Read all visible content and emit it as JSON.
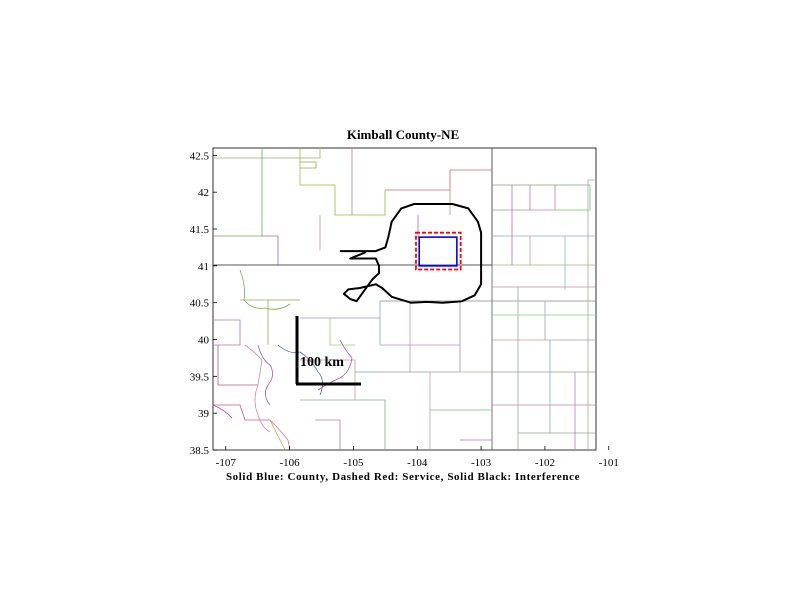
{
  "chart_data": {
    "type": "map",
    "title": "Kimball County-NE",
    "xlabel": "Solid Blue: County, Dashed Red: Service, Solid Black: Interference",
    "xlim": [
      -107.2,
      -101.2
    ],
    "ylim": [
      38.5,
      42.6
    ],
    "xticks": [
      -107,
      -106,
      -105,
      -104,
      -103,
      -102,
      -101
    ],
    "yticks": [
      38.5,
      39,
      39.5,
      40,
      40.5,
      41,
      41.5,
      42,
      42.5
    ],
    "scale_bar_label": "100 km",
    "county": {
      "color": "#0000ff",
      "lon_range": [
        -103.97,
        -103.38
      ],
      "lat_range": [
        41.0,
        41.39
      ]
    },
    "service": {
      "color": "#ff0000",
      "lon_range": [
        -104.02,
        -103.32
      ],
      "lat_range": [
        40.95,
        41.45
      ]
    },
    "interference": {
      "color": "#000000",
      "outline": [
        [
          -104.05,
          41.84
        ],
        [
          -103.45,
          41.84
        ],
        [
          -103.2,
          41.78
        ],
        [
          -103.05,
          41.6
        ],
        [
          -103.0,
          41.45
        ],
        [
          -103.0,
          40.75
        ],
        [
          -103.1,
          40.6
        ],
        [
          -103.3,
          40.52
        ],
        [
          -103.6,
          40.5
        ],
        [
          -103.85,
          40.51
        ],
        [
          -104.1,
          40.5
        ],
        [
          -104.4,
          40.58
        ],
        [
          -104.55,
          40.7
        ],
        [
          -104.65,
          40.75
        ],
        [
          -104.9,
          40.7
        ],
        [
          -105.08,
          40.68
        ],
        [
          -105.15,
          40.62
        ],
        [
          -105.05,
          40.55
        ],
        [
          -104.95,
          40.52
        ],
        [
          -104.7,
          40.82
        ],
        [
          -104.6,
          40.9
        ],
        [
          -104.6,
          41.0
        ],
        [
          -104.65,
          41.1
        ],
        [
          -104.9,
          41.1
        ],
        [
          -105.05,
          41.1
        ],
        [
          -104.82,
          41.18
        ],
        [
          -104.8,
          41.2
        ],
        [
          -105.2,
          41.2
        ],
        [
          -104.65,
          41.2
        ],
        [
          -104.5,
          41.25
        ],
        [
          -104.45,
          41.4
        ],
        [
          -104.4,
          41.6
        ],
        [
          -104.25,
          41.78
        ],
        [
          -104.05,
          41.84
        ]
      ]
    }
  }
}
